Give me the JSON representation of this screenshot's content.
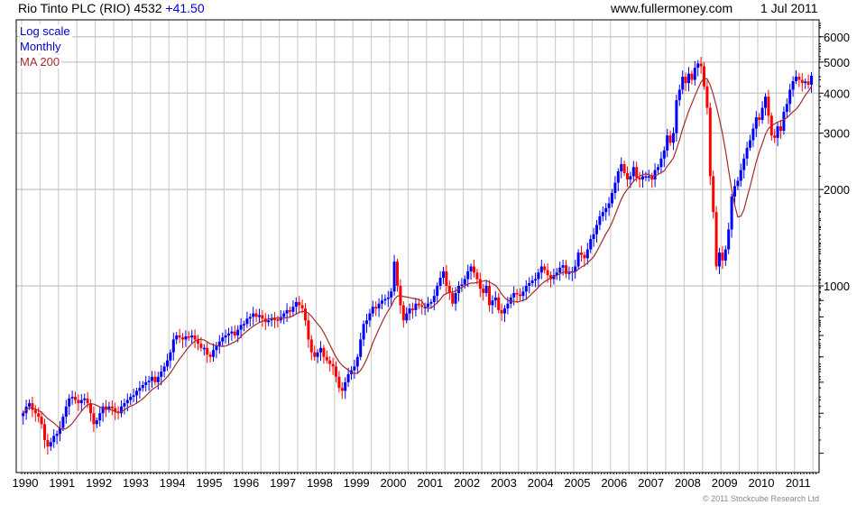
{
  "header": {
    "title": "Rio Tinto PLC (RIO) 4532",
    "change": "+41.50",
    "site": "www.fullermoney.com",
    "date": "1 Jul 2011"
  },
  "legend": {
    "scale": "Log scale",
    "period": "Monthly",
    "ma": "MA 200"
  },
  "footer": "© 2011 Stockcube Research Ltd",
  "colors": {
    "up": "#0000ff",
    "down": "#ff0000",
    "ma": "#a52a2a",
    "grid": "#d0d0d0"
  },
  "chart_data": {
    "type": "candlestick",
    "title": "Rio Tinto PLC (RIO)",
    "yscale": "log",
    "ylim": [
      260,
      6800
    ],
    "yticks": [
      1000,
      2000,
      3000,
      4000,
      5000,
      6000
    ],
    "ytick_labels": [
      "1000",
      "2000",
      "3000",
      "4000",
      "5000",
      "6000"
    ],
    "xticks": [
      "1990",
      "1991",
      "1992",
      "1993",
      "1994",
      "1995",
      "1996",
      "1997",
      "1998",
      "1999",
      "2000",
      "2001",
      "2002",
      "2003",
      "2004",
      "2005",
      "2006",
      "2007",
      "2008",
      "2009",
      "2010",
      "2011"
    ],
    "start_year": 1990,
    "ma_period_label": "MA 200",
    "monthly_close": [
      400,
      420,
      430,
      410,
      400,
      390,
      370,
      330,
      315,
      325,
      340,
      345,
      360,
      390,
      420,
      445,
      450,
      440,
      430,
      440,
      445,
      430,
      400,
      370,
      380,
      400,
      420,
      410,
      420,
      415,
      405,
      400,
      420,
      430,
      440,
      450,
      455,
      470,
      480,
      490,
      500,
      505,
      520,
      500,
      520,
      540,
      560,
      585,
      620,
      680,
      700,
      690,
      680,
      695,
      690,
      700,
      680,
      660,
      640,
      640,
      610,
      600,
      630,
      650,
      670,
      690,
      700,
      710,
      720,
      700,
      730,
      755,
      760,
      790,
      800,
      820,
      800,
      810,
      790,
      770,
      780,
      790,
      785,
      780,
      800,
      820,
      840,
      830,
      860,
      890,
      870,
      850,
      780,
      680,
      620,
      600,
      620,
      640,
      600,
      585,
      570,
      560,
      520,
      480,
      470,
      500,
      530,
      545,
      560,
      600,
      680,
      760,
      780,
      820,
      860,
      850,
      880,
      900,
      910,
      920,
      960,
      1190,
      1000,
      870,
      780,
      820,
      850,
      840,
      880,
      870,
      860,
      860,
      880,
      890,
      930,
      1000,
      1060,
      1110,
      1000,
      950,
      880,
      950,
      1000,
      1010,
      1050,
      1110,
      1150,
      1100,
      1050,
      980,
      950,
      1000,
      870,
      900,
      920,
      840,
      820,
      850,
      880,
      920,
      950,
      940,
      930,
      960,
      1000,
      1020,
      1040,
      1050,
      1100,
      1150,
      1120,
      1080,
      1050,
      1080,
      1100,
      1140,
      1160,
      1090,
      1100,
      1110,
      1150,
      1270,
      1250,
      1220,
      1300,
      1400,
      1450,
      1550,
      1650,
      1700,
      1750,
      1810,
      1950,
      2100,
      2280,
      2400,
      2250,
      2150,
      2200,
      2350,
      2180,
      2150,
      2200,
      2200,
      2200,
      2150,
      2300,
      2350,
      2500,
      2650,
      2950,
      2800,
      3000,
      3800,
      4100,
      4500,
      4300,
      4600,
      4400,
      4800,
      4950,
      4850,
      4200,
      3600,
      2200,
      1700,
      1150,
      1270,
      1200,
      1300,
      1500,
      1900,
      2050,
      2130,
      2300,
      2500,
      2700,
      2850,
      3100,
      3360,
      3300,
      3600,
      3900,
      3400,
      2950,
      2900,
      3150,
      3050,
      3500,
      3700,
      4100,
      4360,
      4500,
      4400,
      4300,
      4350,
      4250,
      4532
    ]
  }
}
